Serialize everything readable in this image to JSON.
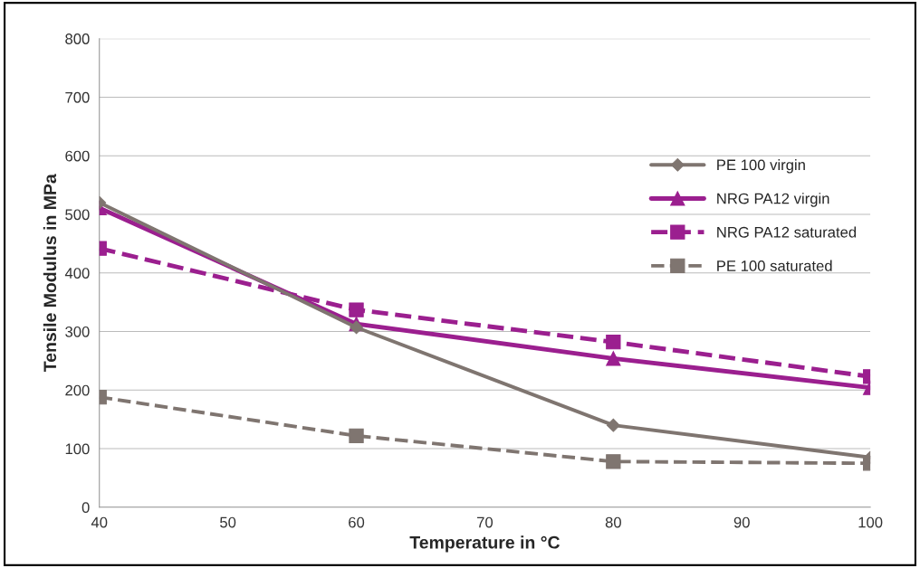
{
  "chart_data": {
    "type": "line",
    "xlabel": "Temperature in °C",
    "ylabel": "Tensile Modulus in MPa",
    "x": [
      40,
      60,
      80,
      100
    ],
    "series": [
      {
        "name": "PE 100 virgin",
        "color": "#7f7570",
        "values": [
          520,
          307,
          140,
          85
        ],
        "marker": "diamond",
        "line_style": "solid"
      },
      {
        "name": "NRG PA12 virgin",
        "color": "#9b1f8f",
        "values": [
          511,
          313,
          254,
          204
        ],
        "marker": "triangle",
        "line_style": "solid"
      },
      {
        "name": "NRG PA12 saturated",
        "color": "#9b1f8f",
        "values": [
          442,
          337,
          282,
          223
        ],
        "marker": "square",
        "line_style": "dashed"
      },
      {
        "name": "PE 100 saturated",
        "color": "#7f7570",
        "values": [
          188,
          122,
          78,
          75
        ],
        "marker": "square",
        "line_style": "dashed"
      }
    ],
    "xlim": [
      40,
      100
    ],
    "xticks": [
      40,
      50,
      60,
      70,
      80,
      90,
      100
    ],
    "ylim": [
      0,
      800
    ],
    "yticks": [
      0,
      100,
      200,
      300,
      400,
      500,
      600,
      700,
      800
    ],
    "grid": "y",
    "legend": "right"
  }
}
